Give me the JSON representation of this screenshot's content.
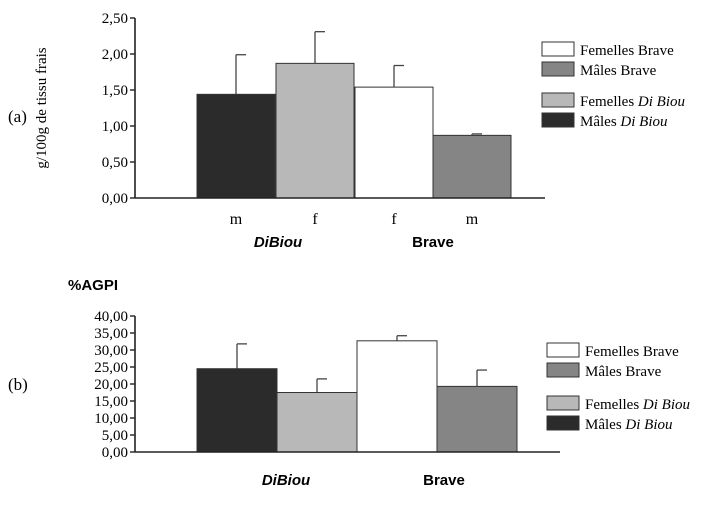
{
  "colors": {
    "dark": "#2b2b2b",
    "light_gray": "#b8b8b8",
    "white": "#ffffff",
    "mid_gray": "#858585",
    "axis": "#222222"
  },
  "chart_data": [
    {
      "type": "bar",
      "panel_label": "(a)",
      "ylabel": "g/100g de tissu frais",
      "ylim": [
        0,
        2.5
      ],
      "yticks": [
        "0,00",
        "0,50",
        "1,00",
        "1,50",
        "2,00",
        "2,50"
      ],
      "tick_values": [
        0,
        0.5,
        1.0,
        1.5,
        2.0,
        2.5
      ],
      "grid": false,
      "bars": [
        {
          "category": "m",
          "group": "DiBiou",
          "series": "Mâles Di Biou",
          "value": 1.44,
          "error": 0.55,
          "color": "#2b2b2b"
        },
        {
          "category": "f",
          "group": "DiBiou",
          "series": "Femelles Di Biou",
          "value": 1.87,
          "error": 0.44,
          "color": "#b8b8b8"
        },
        {
          "category": "f",
          "group": "Brave",
          "series": "Femelles Brave",
          "value": 1.54,
          "error": 0.3,
          "color": "#ffffff"
        },
        {
          "category": "m",
          "group": "Brave",
          "series": "Mâles Brave",
          "value": 0.87,
          "error": 0.02,
          "color": "#858585"
        }
      ],
      "group_labels": [
        "DiBiou",
        "Brave"
      ],
      "legend_position": "right",
      "legend": [
        {
          "prefix": "Femelles Brave",
          "italic": "",
          "color": "#ffffff"
        },
        {
          "prefix": "Mâles Brave",
          "italic": "",
          "color": "#858585"
        },
        {
          "prefix": "Femelles ",
          "italic": "Di Biou",
          "color": "#b8b8b8"
        },
        {
          "prefix": "Mâles ",
          "italic": "Di Biou",
          "color": "#2b2b2b"
        }
      ]
    },
    {
      "type": "bar",
      "panel_label": "(b)",
      "ylabel": "%AGPI",
      "ylim": [
        0,
        40
      ],
      "yticks": [
        "0,00",
        "5,00",
        "10,00",
        "15,00",
        "20,00",
        "25,00",
        "30,00",
        "35,00",
        "40,00"
      ],
      "tick_values": [
        0,
        5,
        10,
        15,
        20,
        25,
        30,
        35,
        40
      ],
      "grid": false,
      "bars": [
        {
          "category": "",
          "group": "DiBiou",
          "series": "Mâles Di Biou",
          "value": 24.5,
          "error": 7.3,
          "color": "#2b2b2b"
        },
        {
          "category": "",
          "group": "DiBiou",
          "series": "Femelles Di Biou",
          "value": 17.5,
          "error": 4.0,
          "color": "#b8b8b8"
        },
        {
          "category": "",
          "group": "Brave",
          "series": "Femelles Brave",
          "value": 32.7,
          "error": 1.5,
          "color": "#ffffff"
        },
        {
          "category": "",
          "group": "Brave",
          "series": "Mâles Brave",
          "value": 19.3,
          "error": 4.8,
          "color": "#858585"
        }
      ],
      "group_labels": [
        "DiBiou",
        "Brave"
      ],
      "legend_position": "right",
      "legend": [
        {
          "prefix": "Femelles Brave",
          "italic": "",
          "color": "#ffffff"
        },
        {
          "prefix": "Mâles Brave",
          "italic": "",
          "color": "#858585"
        },
        {
          "prefix": "Femelles ",
          "italic": "Di Biou",
          "color": "#b8b8b8"
        },
        {
          "prefix": "Mâles ",
          "italic": "Di Biou",
          "color": "#2b2b2b"
        }
      ]
    }
  ]
}
